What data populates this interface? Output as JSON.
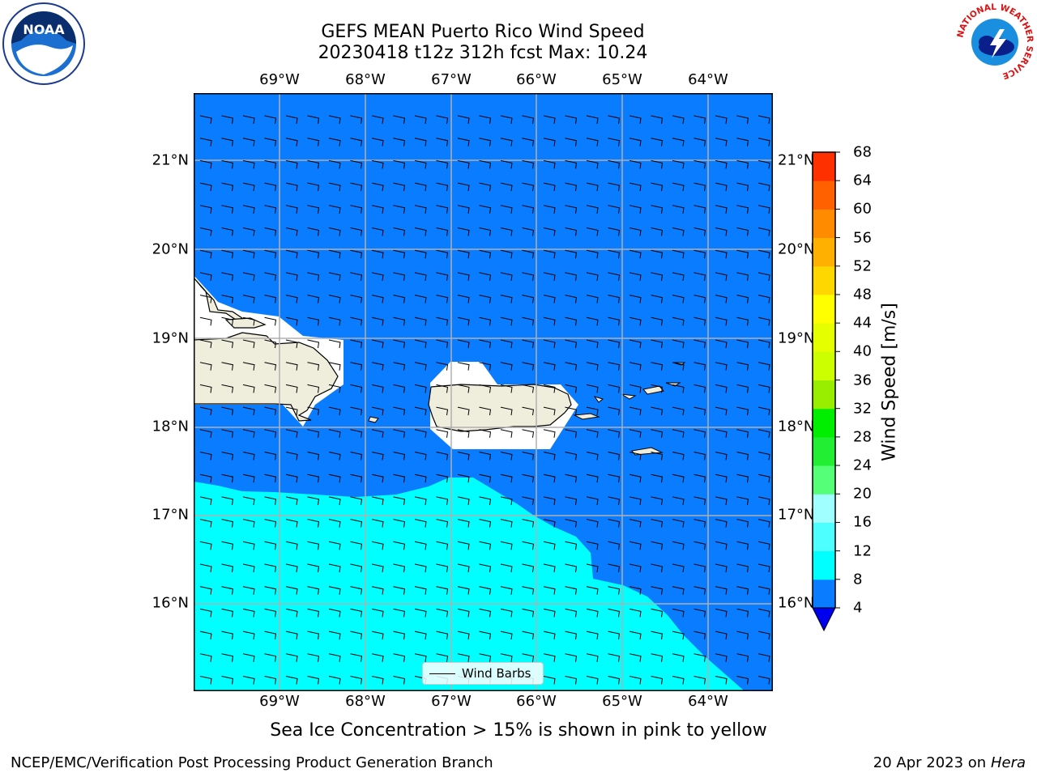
{
  "title": {
    "line1": "GEFS MEAN Puerto Rico Wind Speed",
    "line2": "20230418 t12z 312h fcst   Max: 10.24"
  },
  "map": {
    "lon_labels": [
      "69°W",
      "68°W",
      "67°W",
      "66°W",
      "65°W",
      "64°W"
    ],
    "lat_labels": [
      "21°N",
      "20°N",
      "19°N",
      "18°N",
      "17°N",
      "16°N"
    ],
    "lon_range": [
      -70.0,
      -63.25
    ],
    "lat_range": [
      15.0,
      21.75
    ],
    "colors": {
      "ocean_low": "#0a7cff",
      "ocean_high": "#00ffff",
      "land": "#efeddc",
      "gridline": "#b0b0b0"
    },
    "legend_label": "Wind Barbs"
  },
  "colorbar": {
    "label": "Wind Speed [m/s]",
    "ticks": [
      "68",
      "64",
      "60",
      "56",
      "52",
      "48",
      "44",
      "40",
      "36",
      "32",
      "28",
      "24",
      "20",
      "16",
      "12",
      "8",
      "4"
    ],
    "levels": [
      4,
      8,
      12,
      16,
      20,
      24,
      28,
      32,
      36,
      40,
      44,
      48,
      52,
      56,
      60,
      64,
      68
    ],
    "colors": [
      "#0a7cff",
      "#00ffff",
      "#4dffff",
      "#a0ffff",
      "#55ff77",
      "#22ee33",
      "#00ee00",
      "#99ee00",
      "#ccff00",
      "#e6ff00",
      "#ffff00",
      "#ffd700",
      "#ffb000",
      "#ff8c00",
      "#ff6000",
      "#ff3000",
      "#ff0000"
    ],
    "extend_color": "#0000ee"
  },
  "subtitle": "Sea Ice Concentration > 15% is shown in pink to yellow",
  "footer": {
    "left": "NCEP/EMC/Verification Post Processing Product Generation Branch",
    "right_date": "20 Apr 2023 on ",
    "right_host": "Hera"
  },
  "logos": {
    "noaa_text": "NOAA",
    "nws_text": "NATIONAL WEATHER SERVICE"
  },
  "chart_data": {
    "type": "heatmap",
    "title": "GEFS MEAN Puerto Rico Wind Speed",
    "subtitle": "20230418 t12z 312h fcst   Max: 10.24",
    "colorbar_label": "Wind Speed [m/s]",
    "colorbar_range": [
      4,
      68
    ],
    "max_value": 10.24,
    "x_ticks": [
      "69°W",
      "68°W",
      "67°W",
      "66°W",
      "65°W",
      "64°W"
    ],
    "y_ticks": [
      "21°N",
      "20°N",
      "19°N",
      "18°N",
      "17°N",
      "16°N"
    ],
    "regions": [
      {
        "name": "north",
        "speed_band": "4-8"
      },
      {
        "name": "south",
        "speed_band": "8-12"
      }
    ],
    "grid": true,
    "legend_placement": "bottom-center"
  }
}
